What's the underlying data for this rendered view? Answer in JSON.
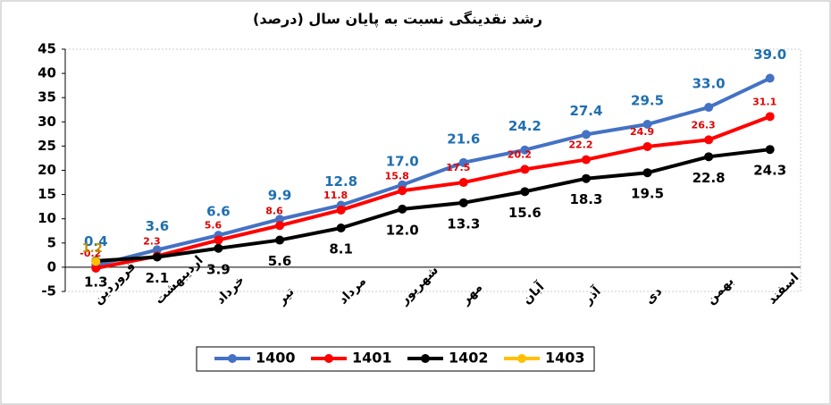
{
  "chart_data": {
    "type": "line",
    "title": "رشد نقدینگی نسبت به پایان سال (درصد)",
    "categories": [
      "فروردین",
      "اردیبهشت",
      "خرداد",
      "تیر",
      "مرداد",
      "شهریور",
      "مهر",
      "آبان",
      "آذر",
      "دی",
      "بهمن",
      "اسفند"
    ],
    "series": [
      {
        "name": "1400",
        "color": "#4472c4",
        "values": [
          0.4,
          3.6,
          6.6,
          9.9,
          12.8,
          17.0,
          21.6,
          24.2,
          27.4,
          29.5,
          33.0,
          39.0
        ],
        "value_labels": [
          "0.4",
          "3.6",
          "6.6",
          "9.9",
          "12.8",
          "17.0",
          "21.6",
          "24.2",
          "27.4",
          "29.5",
          "33.0",
          "39.0"
        ]
      },
      {
        "name": "1401",
        "color": "#ff0000",
        "values": [
          -0.2,
          2.3,
          5.6,
          8.6,
          11.8,
          15.8,
          17.5,
          20.2,
          22.2,
          24.9,
          26.3,
          31.1
        ],
        "value_labels": [
          "-0.2",
          "2.3",
          "5.6",
          "8.6",
          "11.8",
          "15.8",
          "17.5",
          "20.2",
          "22.2",
          "24.9",
          "26.3",
          "31.1"
        ]
      },
      {
        "name": "1402",
        "color": "#000000",
        "values": [
          1.3,
          2.1,
          3.9,
          5.6,
          8.1,
          12.0,
          13.3,
          15.6,
          18.3,
          19.5,
          22.8,
          24.3
        ],
        "value_labels": [
          "1.3",
          "2.1",
          "3.9",
          "5.6",
          "8.1",
          "12.0",
          "13.3",
          "15.6",
          "18.3",
          "19.5",
          "22.8",
          "24.3"
        ]
      },
      {
        "name": "1403",
        "color": "#ffc000",
        "values": [
          1.2,
          null,
          null,
          null,
          null,
          null,
          null,
          null,
          null,
          null,
          null,
          null
        ],
        "value_labels": [
          "1.2",
          null,
          null,
          null,
          null,
          null,
          null,
          null,
          null,
          null,
          null,
          null
        ]
      }
    ],
    "ylim": [
      -5,
      45
    ],
    "yticks": [
      -5,
      0,
      5,
      10,
      15,
      20,
      25,
      30,
      35,
      40,
      45
    ],
    "grid": false
  }
}
